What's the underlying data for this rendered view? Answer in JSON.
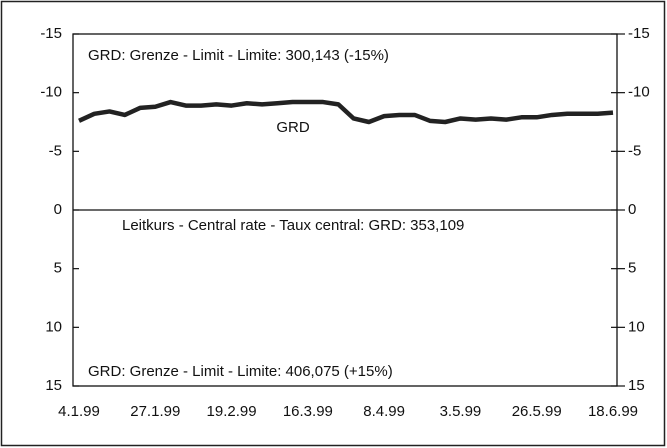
{
  "chart_data": {
    "type": "line",
    "annotations": [
      "GRD: Grenze - Limit - Limite: 300,143  (-15%)",
      "Leitkurs - Central rate - Taux central:  GRD: 353,109",
      "GRD: Grenze - Limit - Limite: 406,075  (+15%)"
    ],
    "categories": [
      "4.1.99",
      null,
      null,
      null,
      null,
      "27.1.99",
      null,
      null,
      null,
      null,
      "19.2.99",
      null,
      null,
      null,
      null,
      "16.3.99",
      null,
      null,
      null,
      null,
      "8.4.99",
      null,
      null,
      null,
      null,
      "3.5.99",
      null,
      null,
      null,
      null,
      "26.5.99",
      null,
      null,
      null,
      null,
      "18.6.99"
    ],
    "series": [
      {
        "name": "GRD",
        "color": "#222222",
        "values": [
          -7.6,
          -8.2,
          -8.4,
          -8.1,
          -8.7,
          -8.8,
          -9.2,
          -8.9,
          -8.9,
          -9.0,
          -8.9,
          -9.1,
          -9.0,
          -9.1,
          -9.2,
          -9.2,
          -9.2,
          -9.0,
          -7.8,
          -7.5,
          -8.0,
          -8.1,
          -8.1,
          -7.6,
          -7.5,
          -7.8,
          -7.7,
          -7.8,
          -7.7,
          -7.9,
          -7.9,
          -8.1,
          -8.2,
          -8.2,
          -8.2,
          -8.3
        ]
      }
    ],
    "ylim": [
      -15,
      15
    ],
    "yticks": [
      -15,
      -10,
      -5,
      0,
      5,
      10,
      15
    ],
    "y2lim": [
      -15,
      15
    ],
    "y2ticks": [
      -15,
      -10,
      -5,
      0,
      5,
      10,
      15
    ],
    "y_inverted": true
  }
}
